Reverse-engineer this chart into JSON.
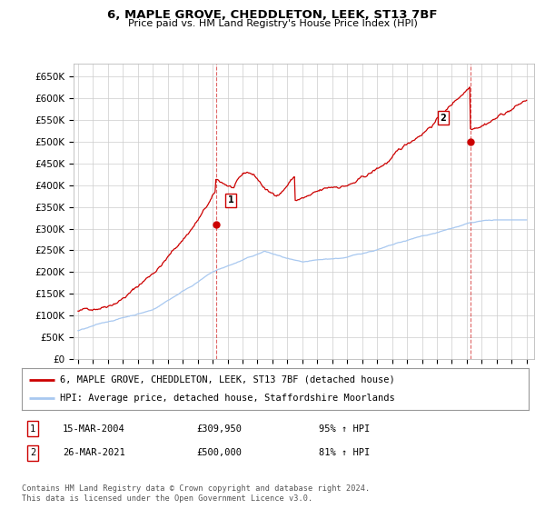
{
  "title": "6, MAPLE GROVE, CHEDDLETON, LEEK, ST13 7BF",
  "subtitle": "Price paid vs. HM Land Registry's House Price Index (HPI)",
  "title_fontsize": 9.5,
  "subtitle_fontsize": 8,
  "ylabel_ticks": [
    "£0",
    "£50K",
    "£100K",
    "£150K",
    "£200K",
    "£250K",
    "£300K",
    "£350K",
    "£400K",
    "£450K",
    "£500K",
    "£550K",
    "£600K",
    "£650K"
  ],
  "ytick_values": [
    0,
    50000,
    100000,
    150000,
    200000,
    250000,
    300000,
    350000,
    400000,
    450000,
    500000,
    550000,
    600000,
    650000
  ],
  "ylim": [
    0,
    680000
  ],
  "hpi_color": "#a8c8f0",
  "sale_color": "#cc0000",
  "marker1_x": 2004.21,
  "marker1_y": 309950,
  "marker2_x": 2021.23,
  "marker2_y": 500000,
  "legend_line1": "6, MAPLE GROVE, CHEDDLETON, LEEK, ST13 7BF (detached house)",
  "legend_line2": "HPI: Average price, detached house, Staffordshire Moorlands",
  "table_row1_num": "1",
  "table_row1_date": "15-MAR-2004",
  "table_row1_price": "£309,950",
  "table_row1_hpi": "95% ↑ HPI",
  "table_row2_num": "2",
  "table_row2_date": "26-MAR-2021",
  "table_row2_price": "£500,000",
  "table_row2_hpi": "81% ↑ HPI",
  "footer": "Contains HM Land Registry data © Crown copyright and database right 2024.\nThis data is licensed under the Open Government Licence v3.0.",
  "background_color": "#ffffff",
  "grid_color": "#cccccc",
  "xlim_left": 1994.7,
  "xlim_right": 2025.5
}
